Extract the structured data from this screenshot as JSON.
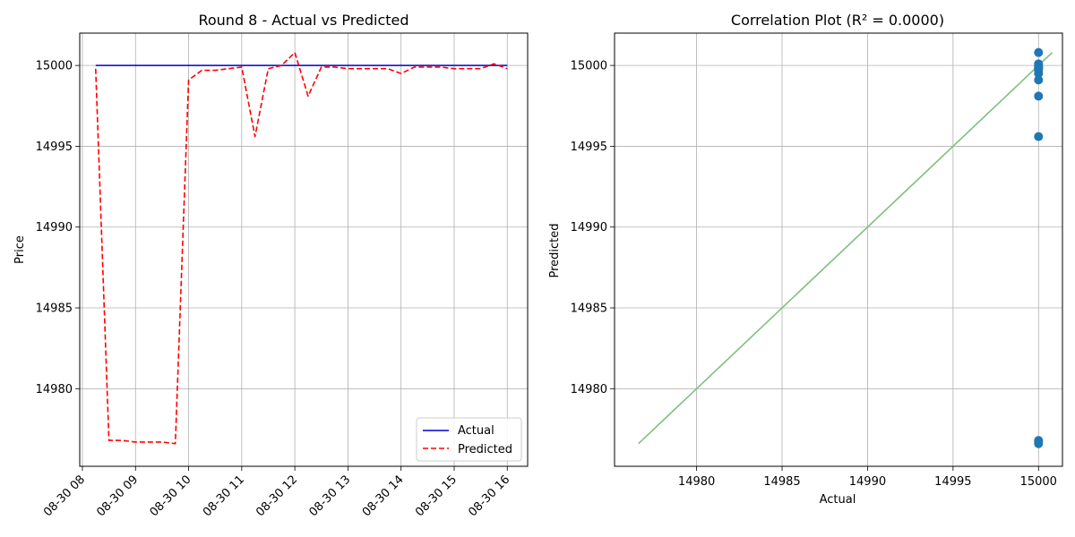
{
  "chart_data": [
    {
      "type": "line",
      "title": "Round 8 - Actual vs Predicted",
      "xlabel": "",
      "ylabel": "Price",
      "ylim": [
        14975.2,
        15002.0
      ],
      "xlim": [
        "08-30 07:57",
        "08-30 16:23"
      ],
      "grid": true,
      "legend": "lower-right",
      "x_ticks": [
        "08-30 08",
        "08-30 09",
        "08-30 10",
        "08-30 11",
        "08-30 12",
        "08-30 13",
        "08-30 14",
        "08-30 15",
        "08-30 16"
      ],
      "y_ticks": [
        14980,
        14985,
        14990,
        14995,
        15000
      ],
      "series": [
        {
          "name": "Actual",
          "color": "#0000cc",
          "style": "solid",
          "x": [
            "08-30 08:15",
            "08-30 16:00"
          ],
          "y": [
            15000,
            15000
          ]
        },
        {
          "name": "Predicted",
          "color": "#ff0000",
          "style": "dashed",
          "x": [
            "08-30 08:15",
            "08-30 08:30",
            "08-30 08:45",
            "08-30 09:00",
            "08-30 09:15",
            "08-30 09:30",
            "08-30 09:45",
            "08-30 10:00",
            "08-30 10:15",
            "08-30 10:30",
            "08-30 10:45",
            "08-30 11:00",
            "08-30 11:15",
            "08-30 11:30",
            "08-30 11:45",
            "08-30 12:00",
            "08-30 12:15",
            "08-30 12:30",
            "08-30 12:45",
            "08-30 13:00",
            "08-30 13:15",
            "08-30 13:30",
            "08-30 13:45",
            "08-30 14:00",
            "08-30 14:15",
            "08-30 14:30",
            "08-30 14:45",
            "08-30 15:00",
            "08-30 15:15",
            "08-30 15:30",
            "08-30 15:45",
            "08-30 16:00"
          ],
          "y": [
            14999.8,
            14976.8,
            14976.8,
            14976.7,
            14976.7,
            14976.7,
            14976.6,
            14999.1,
            14999.7,
            14999.7,
            14999.8,
            14999.9,
            14995.6,
            14999.8,
            15000.0,
            15000.8,
            14998.1,
            14999.9,
            14999.9,
            14999.8,
            14999.8,
            14999.8,
            14999.8,
            14999.5,
            14999.9,
            14999.9,
            14999.9,
            14999.8,
            14999.8,
            14999.8,
            15000.1,
            14999.8
          ]
        }
      ]
    },
    {
      "type": "scatter",
      "title": "Correlation Plot (R² = 0.0000)",
      "xlabel": "Actual",
      "ylabel": "Predicted",
      "xlim": [
        14975.2,
        15001.4
      ],
      "ylim": [
        14975.2,
        15002.0
      ],
      "grid": true,
      "x_ticks": [
        14980,
        14985,
        14990,
        14995,
        15000
      ],
      "y_ticks": [
        14980,
        14985,
        14990,
        14995,
        15000
      ],
      "points": {
        "color": "#1f77b4",
        "x": [
          15000,
          15000,
          15000,
          15000,
          15000,
          15000,
          15000,
          15000,
          15000,
          15000,
          15000,
          15000,
          15000,
          15000,
          15000
        ],
        "y": [
          15000.8,
          15000.1,
          14999.9,
          14999.8,
          14999.7,
          14999.5,
          14999.1,
          14998.1,
          14995.6,
          14976.8,
          14976.7,
          14976.6,
          15000.0,
          14999.8,
          14999.9
        ]
      },
      "reference_line": {
        "color": "#7fbf7f",
        "x": [
          14976.6,
          15000.8
        ],
        "y": [
          14976.6,
          15000.8
        ]
      }
    }
  ]
}
